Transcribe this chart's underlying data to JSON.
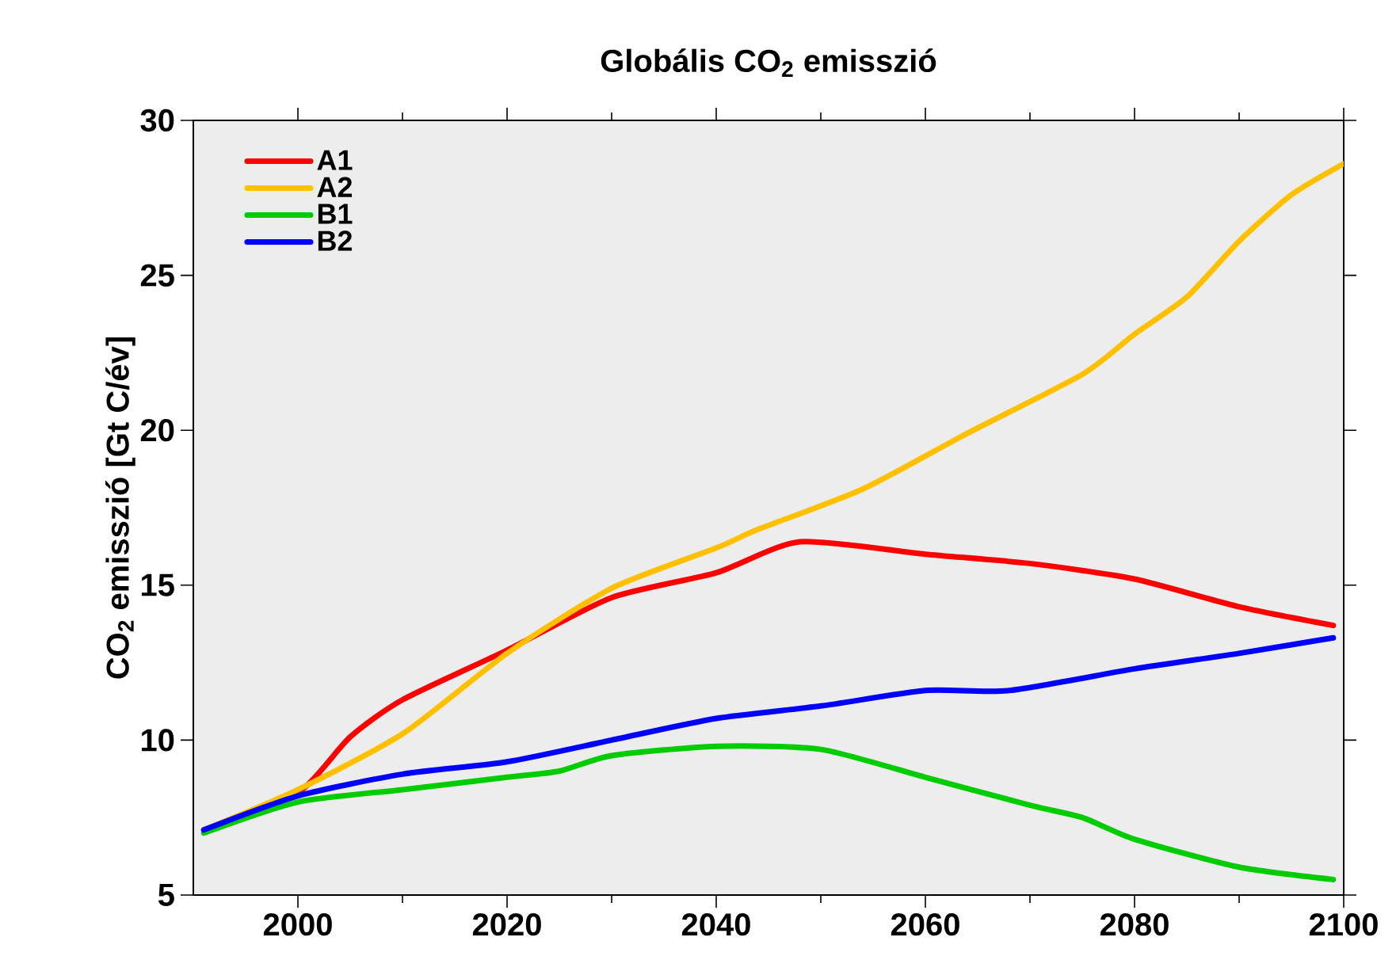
{
  "chart_data": {
    "type": "line",
    "title": "Globális CO$_{2}$ emisszió",
    "ylabel": "CO$_{2}$ emisszió [Gt C/év]",
    "xlim": [
      1990,
      2100
    ],
    "ylim": [
      5,
      30
    ],
    "xticks": [
      2000,
      {
        "value": 2010,
        "label": null
      },
      2020,
      {
        "value": 2030,
        "label": null
      },
      2040,
      {
        "value": 2050,
        "label": null
      },
      2060,
      {
        "value": 2070,
        "label": null
      },
      2080,
      {
        "value": 2090,
        "label": null
      },
      2100
    ],
    "yticks": [
      5,
      10,
      15,
      20,
      25,
      30
    ],
    "legend": "top left",
    "grid": false,
    "marker": "none",
    "line_style": "solid",
    "series": [
      {
        "name": "A1",
        "color": "#ff0000",
        "x": [
          1991,
          2000,
          2005,
          2010,
          2020,
          2030,
          2040,
          2048,
          2060,
          2070,
          2080,
          2090,
          2099
        ],
        "values": [
          7.1,
          8.3,
          10.1,
          11.3,
          12.9,
          14.6,
          15.4,
          16.4,
          16.0,
          15.7,
          15.2,
          14.3,
          13.7
        ]
      },
      {
        "name": "A2",
        "color": "#ffc000",
        "x": [
          1991,
          2000,
          2010,
          2020,
          2030,
          2040,
          2044,
          2054,
          2064,
          2075,
          2080,
          2085,
          2090,
          2095,
          2100
        ],
        "values": [
          7.1,
          8.4,
          10.2,
          12.8,
          14.9,
          16.2,
          16.8,
          18.1,
          19.9,
          21.8,
          23.1,
          24.3,
          26.1,
          27.6,
          28.6
        ]
      },
      {
        "name": "B1",
        "color": "#00cc00",
        "x": [
          1991,
          2000,
          2010,
          2020,
          2025,
          2030,
          2040,
          2050,
          2060,
          2070,
          2075,
          2080,
          2090,
          2099
        ],
        "values": [
          7.0,
          8.0,
          8.4,
          8.8,
          9.0,
          9.5,
          9.8,
          9.7,
          8.8,
          7.9,
          7.5,
          6.8,
          5.9,
          5.5
        ]
      },
      {
        "name": "B2",
        "color": "#0000ff",
        "x": [
          1991,
          2000,
          2010,
          2020,
          2030,
          2040,
          2050,
          2060,
          2068,
          2080,
          2090,
          2099
        ],
        "values": [
          7.1,
          8.2,
          8.9,
          9.3,
          10.0,
          10.7,
          11.1,
          11.6,
          11.6,
          12.3,
          12.8,
          13.3
        ]
      }
    ]
  }
}
